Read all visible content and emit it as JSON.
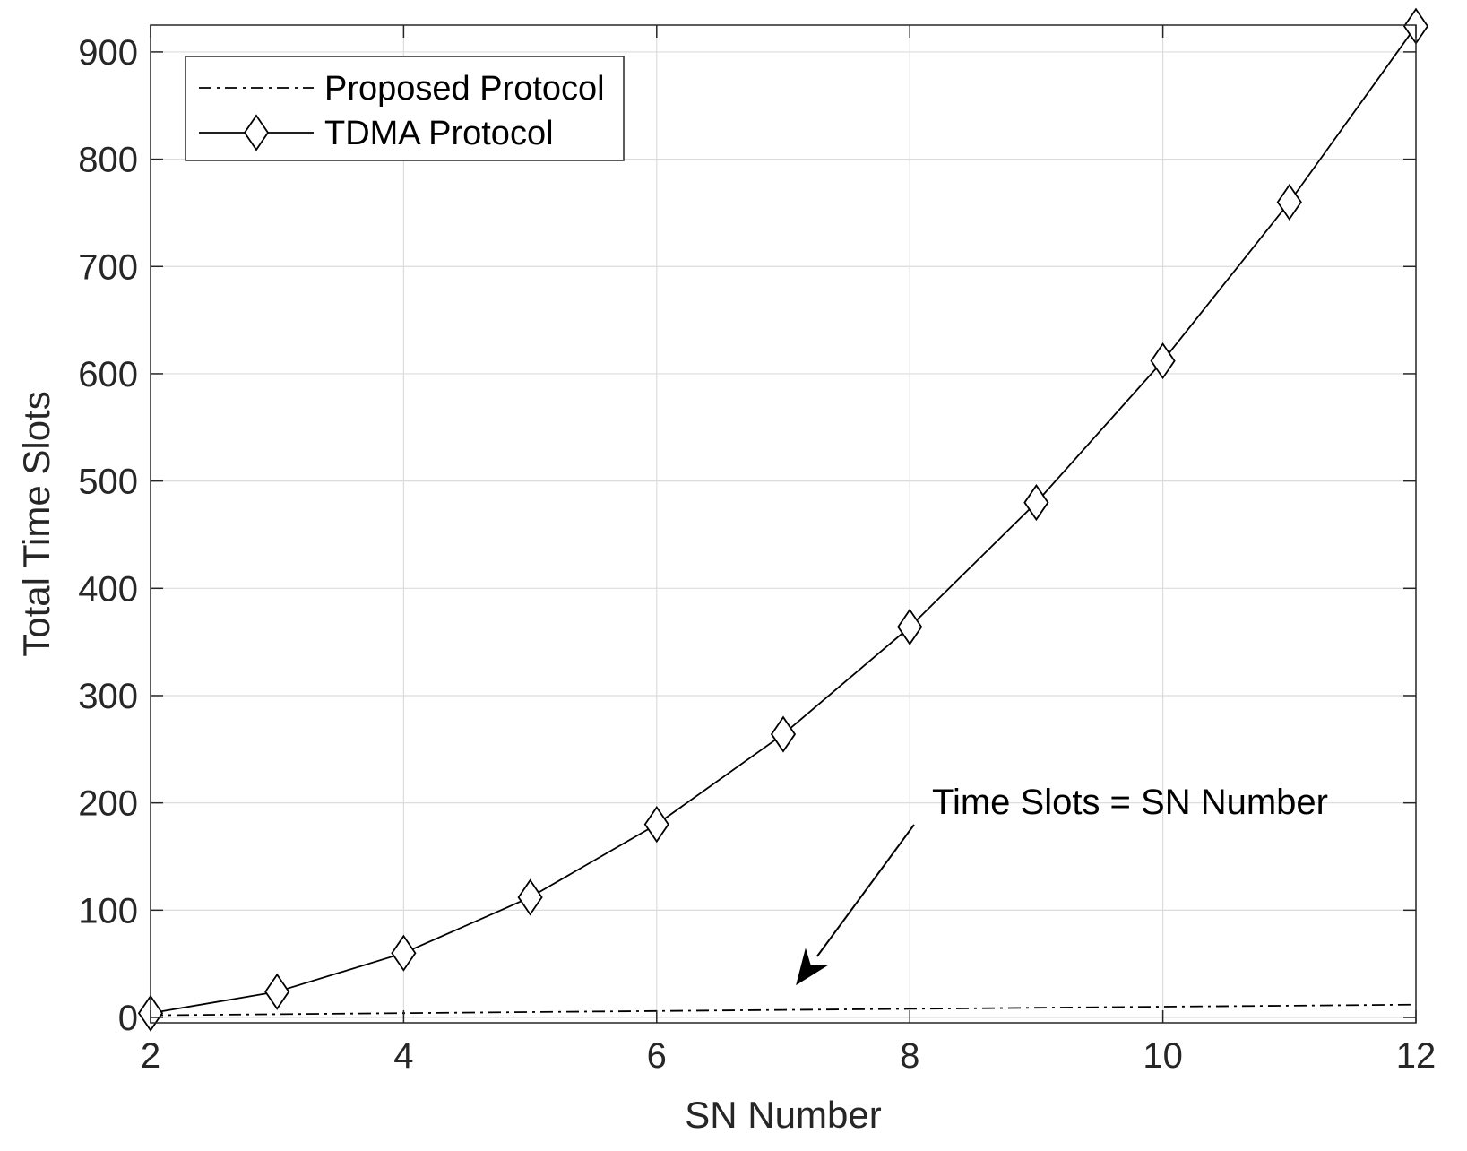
{
  "chart_data": {
    "type": "line",
    "xlabel": "SN Number",
    "ylabel": "Total Time Slots",
    "xlim": [
      2,
      12
    ],
    "ylim": [
      -5,
      925
    ],
    "xticks": [
      2,
      4,
      6,
      8,
      10,
      12
    ],
    "yticks": [
      0,
      100,
      200,
      300,
      400,
      500,
      600,
      700,
      800,
      900
    ],
    "grid": true,
    "legend_position": "top-left",
    "x": [
      2,
      3,
      4,
      5,
      6,
      7,
      8,
      9,
      10,
      11,
      12
    ],
    "series": [
      {
        "name": "Proposed Protocol",
        "line_style": "dash-dot",
        "marker": "none",
        "values": [
          2,
          3,
          4,
          5,
          6,
          7,
          8,
          9,
          10,
          11,
          12
        ]
      },
      {
        "name": "TDMA Protocol",
        "line_style": "solid",
        "marker": "diamond",
        "values": [
          4,
          24,
          60,
          112,
          180,
          264,
          364,
          480,
          612,
          760,
          924
        ]
      }
    ],
    "annotations": [
      {
        "text": "Time Slots = SN Number",
        "arrow_to": {
          "x": 7.1,
          "y": 30
        }
      }
    ],
    "colors": {
      "line": "#000000",
      "grid": "#dcdcdc",
      "axis": "#262626",
      "background": "#ffffff"
    }
  }
}
